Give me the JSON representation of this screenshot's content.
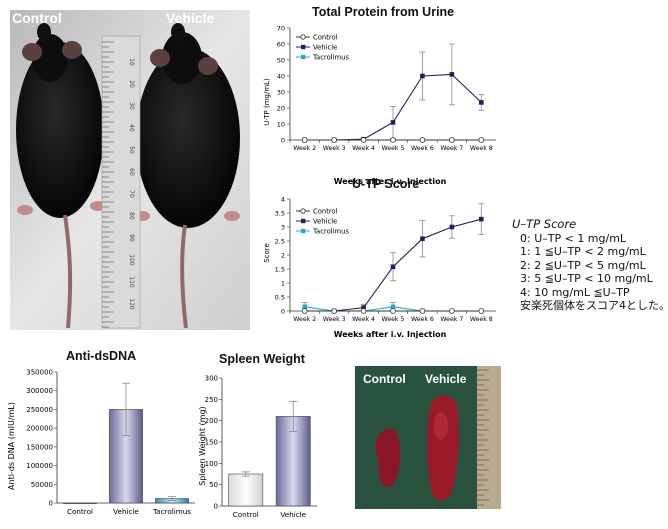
{
  "photo_mice": {
    "labels": [
      "Control",
      "Vehicle"
    ],
    "ruler_marks": [
      "10",
      "20",
      "30",
      "40",
      "50",
      "60",
      "70",
      "80",
      "90",
      "100",
      "110",
      "120"
    ]
  },
  "photo_spleen": {
    "labels": [
      "Control",
      "Vehicle"
    ]
  },
  "score_scale": {
    "title": "U–TP Score",
    "lines": [
      "0: U–TP < 1 mg/mL",
      "1: 1 ≦U–TP < 2 mg/mL",
      "2: 2 ≦U–TP < 5 mg/mL",
      "3: 5 ≦U–TP < 10 mg/mL",
      "4: 10 mg/mL ≦U–TP",
      "安楽死個体をスコア4とした。"
    ]
  },
  "colors": {
    "control": "#ffffff",
    "vehicle": "#1f1f5f",
    "tacrolimus": "#2aa9c9",
    "axis": "#333333",
    "error": "#888888",
    "photo_bg": "#2e5a44"
  },
  "chart_data": [
    {
      "id": "utp",
      "type": "line",
      "title": "Total Protein from Urine",
      "xlabel": "Weeks after i.v. Injection",
      "ylabel": "U-TP (mg/mL)",
      "categories": [
        "Week 2",
        "Week 3",
        "Week 4",
        "Week 5",
        "Week 6",
        "Week 7",
        "Week 8"
      ],
      "ylim": [
        0,
        70
      ],
      "yticks": [
        0,
        10,
        20,
        30,
        40,
        50,
        60,
        70
      ],
      "legend_position": "top-left",
      "series": [
        {
          "name": "Control",
          "marker": "circle-open",
          "values": [
            0,
            0,
            0,
            0,
            0,
            0,
            0
          ],
          "errors": [
            0,
            0,
            0,
            0,
            0,
            0,
            0
          ]
        },
        {
          "name": "Vehicle",
          "marker": "square",
          "values": [
            0,
            0,
            0.5,
            11,
            40,
            41,
            23.5
          ],
          "errors": [
            0,
            0,
            0.5,
            10,
            15,
            19,
            5
          ]
        },
        {
          "name": "Tacrolimus",
          "marker": "square",
          "values": [
            0,
            0,
            0,
            0,
            0,
            0,
            0
          ],
          "errors": [
            0,
            0,
            0,
            0,
            0,
            0,
            0
          ]
        }
      ]
    },
    {
      "id": "score",
      "type": "line",
      "title": "U-TP Score",
      "xlabel": "Weeks after i.v. Injection",
      "ylabel": "Score",
      "categories": [
        "Week 2",
        "Week 3",
        "Week 4",
        "Week 5",
        "Week 6",
        "Week 7",
        "Week 8"
      ],
      "ylim": [
        0,
        4
      ],
      "yticks": [
        0,
        0.5,
        1,
        1.5,
        2,
        2.5,
        3,
        3.5,
        4
      ],
      "legend_position": "top-left",
      "series": [
        {
          "name": "Control",
          "marker": "circle-open",
          "values": [
            0,
            0,
            0,
            0,
            0,
            0,
            0
          ],
          "errors": [
            0,
            0,
            0,
            0,
            0,
            0,
            0
          ]
        },
        {
          "name": "Vehicle",
          "marker": "square",
          "values": [
            0,
            0,
            0.12,
            1.58,
            2.58,
            3.0,
            3.28
          ],
          "errors": [
            0,
            0,
            0.12,
            0.5,
            0.65,
            0.4,
            0.55
          ]
        },
        {
          "name": "Tacrolimus",
          "marker": "square",
          "values": [
            0.15,
            0,
            0,
            0.15,
            0,
            0,
            0
          ],
          "errors": [
            0.15,
            0,
            0,
            0.15,
            0,
            0,
            0
          ]
        }
      ]
    },
    {
      "id": "dsdna",
      "type": "bar",
      "title": "Anti-dsDNA",
      "ylabel": "Anti-ds DNA (mIU/mL)",
      "categories": [
        "Control",
        "Vehicle",
        "Tacrolimus"
      ],
      "values": [
        0,
        250000,
        12000
      ],
      "errors": [
        0,
        70000,
        5000
      ],
      "ylim": [
        0,
        350000
      ],
      "yticks": [
        0,
        50000,
        100000,
        150000,
        200000,
        250000,
        300000,
        350000
      ],
      "ytick_labels": [
        "0",
        "50000",
        "100000",
        "150000",
        "200000",
        "250000",
        "300000",
        "350000"
      ]
    },
    {
      "id": "spleen",
      "type": "bar",
      "title": "Spleen Weight",
      "ylabel": "Spleen Weight (mg)",
      "categories": [
        "Control",
        "Vehicle"
      ],
      "values": [
        75,
        210
      ],
      "errors": [
        5,
        35
      ],
      "ylim": [
        0,
        300
      ],
      "yticks": [
        0,
        50,
        100,
        150,
        200,
        250,
        300
      ],
      "ytick_labels": [
        "0",
        "50",
        "100",
        "150",
        "200",
        "250",
        "300"
      ]
    }
  ]
}
